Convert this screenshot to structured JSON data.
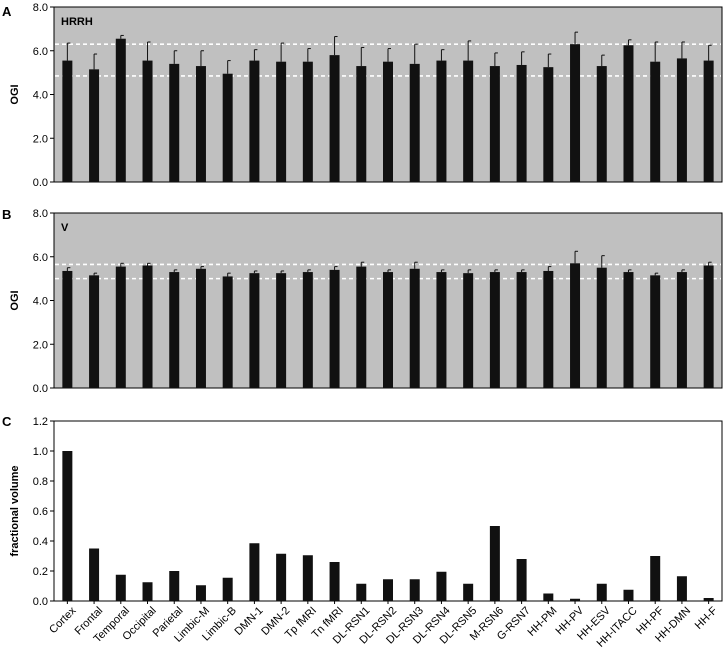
{
  "categories": [
    "Cortex",
    "Frontal",
    "Temporal",
    "Occipital",
    "Parietal",
    "Limbic-M",
    "Limbic-B",
    "DMN-1",
    "DMN-2",
    "Tp fMRI",
    "Tn fMRI",
    "DL-RSN1",
    "DL-RSN2",
    "DL-RSN3",
    "DL-RSN4",
    "DL-RSN5",
    "M-RSN6",
    "G-RSN7",
    "HH-PM",
    "HH-PV",
    "HH-ESV",
    "HH-ITACC",
    "HH-PF",
    "HH-DMN",
    "HH-F"
  ],
  "colors": {
    "panel_bg": "#c0c0c0",
    "bar": "#111111",
    "ref_line": "#ffffff"
  },
  "chart_data": [
    {
      "panel_label": "A",
      "title": "HRRH",
      "type": "bar",
      "ylabel": "OGI",
      "ylim": [
        0,
        8
      ],
      "yticks": [
        "0.0",
        "2.0",
        "4.0",
        "6.0",
        "8.0"
      ],
      "values": [
        5.55,
        5.15,
        6.55,
        5.55,
        5.4,
        5.3,
        4.95,
        5.55,
        5.5,
        5.5,
        5.8,
        5.3,
        5.5,
        5.4,
        5.55,
        5.55,
        5.3,
        5.35,
        5.25,
        6.3,
        5.3,
        6.25,
        5.5,
        5.65,
        5.55
      ],
      "errors": [
        0.8,
        0.7,
        0.15,
        0.85,
        0.6,
        0.7,
        0.6,
        0.5,
        0.85,
        0.6,
        0.85,
        0.85,
        0.6,
        0.9,
        0.5,
        0.9,
        0.6,
        0.6,
        0.6,
        0.55,
        0.5,
        0.25,
        0.9,
        0.75,
        0.7
      ],
      "reference_lines": [
        6.3,
        4.85
      ],
      "background": "grey",
      "grid": false,
      "legend": "none"
    },
    {
      "panel_label": "B",
      "title": "V",
      "type": "bar",
      "ylabel": "OGI",
      "ylim": [
        0,
        8
      ],
      "yticks": [
        "0.0",
        "2.0",
        "4.0",
        "6.0",
        "8.0"
      ],
      "values": [
        5.35,
        5.15,
        5.55,
        5.6,
        5.3,
        5.45,
        5.1,
        5.25,
        5.25,
        5.3,
        5.4,
        5.55,
        5.3,
        5.45,
        5.3,
        5.25,
        5.3,
        5.3,
        5.35,
        5.7,
        5.5,
        5.3,
        5.15,
        5.3,
        5.6
      ],
      "errors": [
        0.15,
        0.1,
        0.15,
        0.1,
        0.1,
        0.1,
        0.15,
        0.1,
        0.1,
        0.1,
        0.15,
        0.2,
        0.1,
        0.3,
        0.1,
        0.15,
        0.1,
        0.1,
        0.2,
        0.55,
        0.55,
        0.1,
        0.1,
        0.1,
        0.15
      ],
      "reference_lines": [
        5.65,
        5.0
      ],
      "background": "grey",
      "grid": false,
      "legend": "none"
    },
    {
      "panel_label": "C",
      "title": "",
      "type": "bar",
      "ylabel": "fractional volume",
      "ylim": [
        0,
        1.2
      ],
      "yticks": [
        "0.0",
        "0.2",
        "0.4",
        "0.6",
        "0.8",
        "1.0",
        "1.2"
      ],
      "values": [
        1.0,
        0.35,
        0.175,
        0.125,
        0.2,
        0.105,
        0.155,
        0.385,
        0.315,
        0.305,
        0.26,
        0.115,
        0.145,
        0.145,
        0.195,
        0.115,
        0.5,
        0.28,
        0.05,
        0.015,
        0.115,
        0.075,
        0.3,
        0.165,
        0.02
      ],
      "errors": [],
      "reference_lines": [],
      "background": "white",
      "grid": false,
      "legend": "none",
      "xlabel": ""
    }
  ]
}
